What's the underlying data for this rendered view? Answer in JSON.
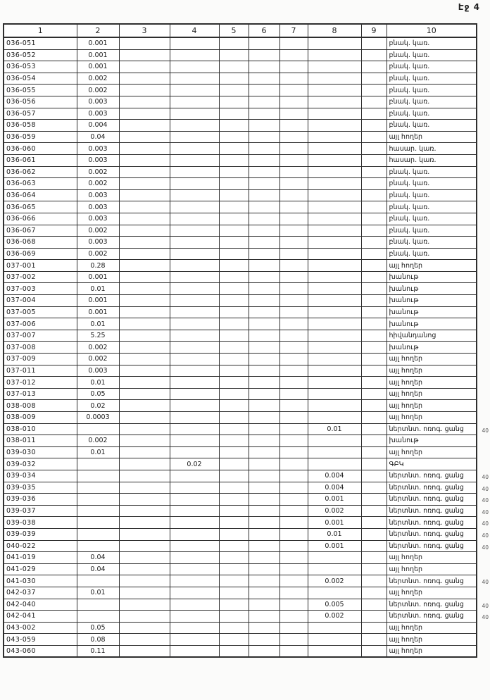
{
  "page": {
    "number_label": "Էջ 4"
  },
  "colors": {
    "paper": "#ffffff",
    "ink": "#1c1c1c",
    "border": "#2e2e2e",
    "margin_note": "#555555"
  },
  "table": {
    "headers": [
      "1",
      "2",
      "3",
      "4",
      "5",
      "6",
      "7",
      "8",
      "9",
      "10"
    ],
    "margin_note_label": "40",
    "rows": [
      {
        "c1": "036-051",
        "c2": "0.001",
        "c3": "",
        "c4": "",
        "c5": "",
        "c6": "",
        "c7": "",
        "c8": "",
        "c9": "",
        "c10": "բնակ. կառ.",
        "note": ""
      },
      {
        "c1": "036-052",
        "c2": "0.001",
        "c3": "",
        "c4": "",
        "c5": "",
        "c6": "",
        "c7": "",
        "c8": "",
        "c9": "",
        "c10": "բնակ. կառ.",
        "note": ""
      },
      {
        "c1": "036-053",
        "c2": "0.001",
        "c3": "",
        "c4": "",
        "c5": "",
        "c6": "",
        "c7": "",
        "c8": "",
        "c9": "",
        "c10": "բնակ. կառ.",
        "note": ""
      },
      {
        "c1": "036-054",
        "c2": "0.002",
        "c3": "",
        "c4": "",
        "c5": "",
        "c6": "",
        "c7": "",
        "c8": "",
        "c9": "",
        "c10": "բնակ. կառ.",
        "note": ""
      },
      {
        "c1": "036-055",
        "c2": "0.002",
        "c3": "",
        "c4": "",
        "c5": "",
        "c6": "",
        "c7": "",
        "c8": "",
        "c9": "",
        "c10": "բնակ. կառ.",
        "note": ""
      },
      {
        "c1": "036-056",
        "c2": "0.003",
        "c3": "",
        "c4": "",
        "c5": "",
        "c6": "",
        "c7": "",
        "c8": "",
        "c9": "",
        "c10": "բնակ. կառ.",
        "note": ""
      },
      {
        "c1": "036-057",
        "c2": "0.003",
        "c3": "",
        "c4": "",
        "c5": "",
        "c6": "",
        "c7": "",
        "c8": "",
        "c9": "",
        "c10": "բնակ. կառ.",
        "note": ""
      },
      {
        "c1": "036-058",
        "c2": "0.004",
        "c3": "",
        "c4": "",
        "c5": "",
        "c6": "",
        "c7": "",
        "c8": "",
        "c9": "",
        "c10": "բնակ. կառ.",
        "note": ""
      },
      {
        "c1": "036-059",
        "c2": "0.04",
        "c3": "",
        "c4": "",
        "c5": "",
        "c6": "",
        "c7": "",
        "c8": "",
        "c9": "",
        "c10": "այլ հողեր",
        "note": ""
      },
      {
        "c1": "036-060",
        "c2": "0.003",
        "c3": "",
        "c4": "",
        "c5": "",
        "c6": "",
        "c7": "",
        "c8": "",
        "c9": "",
        "c10": "հասար. կառ.",
        "note": ""
      },
      {
        "c1": "036-061",
        "c2": "0.003",
        "c3": "",
        "c4": "",
        "c5": "",
        "c6": "",
        "c7": "",
        "c8": "",
        "c9": "",
        "c10": "հասար. կառ.",
        "note": ""
      },
      {
        "c1": "036-062",
        "c2": "0.002",
        "c3": "",
        "c4": "",
        "c5": "",
        "c6": "",
        "c7": "",
        "c8": "",
        "c9": "",
        "c10": "բնակ. կառ.",
        "note": ""
      },
      {
        "c1": "036-063",
        "c2": "0.002",
        "c3": "",
        "c4": "",
        "c5": "",
        "c6": "",
        "c7": "",
        "c8": "",
        "c9": "",
        "c10": "բնակ. կառ.",
        "note": ""
      },
      {
        "c1": "036-064",
        "c2": "0.003",
        "c3": "",
        "c4": "",
        "c5": "",
        "c6": "",
        "c7": "",
        "c8": "",
        "c9": "",
        "c10": "բնակ. կառ.",
        "note": ""
      },
      {
        "c1": "036-065",
        "c2": "0.003",
        "c3": "",
        "c4": "",
        "c5": "",
        "c6": "",
        "c7": "",
        "c8": "",
        "c9": "",
        "c10": "բնակ. կառ.",
        "note": ""
      },
      {
        "c1": "036-066",
        "c2": "0.003",
        "c3": "",
        "c4": "",
        "c5": "",
        "c6": "",
        "c7": "",
        "c8": "",
        "c9": "",
        "c10": "բնակ. կառ.",
        "note": ""
      },
      {
        "c1": "036-067",
        "c2": "0.002",
        "c3": "",
        "c4": "",
        "c5": "",
        "c6": "",
        "c7": "",
        "c8": "",
        "c9": "",
        "c10": "բնակ. կառ.",
        "note": ""
      },
      {
        "c1": "036-068",
        "c2": "0.003",
        "c3": "",
        "c4": "",
        "c5": "",
        "c6": "",
        "c7": "",
        "c8": "",
        "c9": "",
        "c10": "բնակ. կառ.",
        "note": ""
      },
      {
        "c1": "036-069",
        "c2": "0.002",
        "c3": "",
        "c4": "",
        "c5": "",
        "c6": "",
        "c7": "",
        "c8": "",
        "c9": "",
        "c10": "բնակ. կառ.",
        "note": ""
      },
      {
        "c1": "037-001",
        "c2": "0.28",
        "c3": "",
        "c4": "",
        "c5": "",
        "c6": "",
        "c7": "",
        "c8": "",
        "c9": "",
        "c10": "այլ հողեր",
        "note": ""
      },
      {
        "c1": "037-002",
        "c2": "0.001",
        "c3": "",
        "c4": "",
        "c5": "",
        "c6": "",
        "c7": "",
        "c8": "",
        "c9": "",
        "c10": "խանութ",
        "note": ""
      },
      {
        "c1": "037-003",
        "c2": "0.01",
        "c3": "",
        "c4": "",
        "c5": "",
        "c6": "",
        "c7": "",
        "c8": "",
        "c9": "",
        "c10": "խանութ",
        "note": ""
      },
      {
        "c1": "037-004",
        "c2": "0.001",
        "c3": "",
        "c4": "",
        "c5": "",
        "c6": "",
        "c7": "",
        "c8": "",
        "c9": "",
        "c10": "խանութ",
        "note": ""
      },
      {
        "c1": "037-005",
        "c2": "0.001",
        "c3": "",
        "c4": "",
        "c5": "",
        "c6": "",
        "c7": "",
        "c8": "",
        "c9": "",
        "c10": "խանութ",
        "note": ""
      },
      {
        "c1": "037-006",
        "c2": "0.01",
        "c3": "",
        "c4": "",
        "c5": "",
        "c6": "",
        "c7": "",
        "c8": "",
        "c9": "",
        "c10": "խանութ",
        "note": ""
      },
      {
        "c1": "037-007",
        "c2": "5.25",
        "c3": "",
        "c4": "",
        "c5": "",
        "c6": "",
        "c7": "",
        "c8": "",
        "c9": "",
        "c10": "հիվանդանոց",
        "note": ""
      },
      {
        "c1": "037-008",
        "c2": "0.002",
        "c3": "",
        "c4": "",
        "c5": "",
        "c6": "",
        "c7": "",
        "c8": "",
        "c9": "",
        "c10": "խանութ",
        "note": ""
      },
      {
        "c1": "037-009",
        "c2": "0.002",
        "c3": "",
        "c4": "",
        "c5": "",
        "c6": "",
        "c7": "",
        "c8": "",
        "c9": "",
        "c10": "այլ հողեր",
        "note": ""
      },
      {
        "c1": "037-011",
        "c2": "0.003",
        "c3": "",
        "c4": "",
        "c5": "",
        "c6": "",
        "c7": "",
        "c8": "",
        "c9": "",
        "c10": "այլ հողեր",
        "note": ""
      },
      {
        "c1": "037-012",
        "c2": "0.01",
        "c3": "",
        "c4": "",
        "c5": "",
        "c6": "",
        "c7": "",
        "c8": "",
        "c9": "",
        "c10": "այլ հողեր",
        "note": ""
      },
      {
        "c1": "037-013",
        "c2": "0.05",
        "c3": "",
        "c4": "",
        "c5": "",
        "c6": "",
        "c7": "",
        "c8": "",
        "c9": "",
        "c10": "այլ հողեր",
        "note": ""
      },
      {
        "c1": "038-008",
        "c2": "0.02",
        "c3": "",
        "c4": "",
        "c5": "",
        "c6": "",
        "c7": "",
        "c8": "",
        "c9": "",
        "c10": "այլ հողեր",
        "note": ""
      },
      {
        "c1": "038-009",
        "c2": "0.0003",
        "c3": "",
        "c4": "",
        "c5": "",
        "c6": "",
        "c7": "",
        "c8": "",
        "c9": "",
        "c10": "այլ հողեր",
        "note": ""
      },
      {
        "c1": "038-010",
        "c2": "",
        "c3": "",
        "c4": "",
        "c5": "",
        "c6": "",
        "c7": "",
        "c8": "0.01",
        "c9": "",
        "c10": "ներտնտ. ոռոգ. ցանց",
        "note": "40"
      },
      {
        "c1": "038-011",
        "c2": "0.002",
        "c3": "",
        "c4": "",
        "c5": "",
        "c6": "",
        "c7": "",
        "c8": "",
        "c9": "",
        "c10": "խանութ",
        "note": ""
      },
      {
        "c1": "039-030",
        "c2": "0.01",
        "c3": "",
        "c4": "",
        "c5": "",
        "c6": "",
        "c7": "",
        "c8": "",
        "c9": "",
        "c10": "այլ հողեր",
        "note": ""
      },
      {
        "c1": "039-032",
        "c2": "",
        "c3": "",
        "c4": "0.02",
        "c5": "",
        "c6": "",
        "c7": "",
        "c8": "",
        "c9": "",
        "c10": "ԳԲԿ",
        "note": ""
      },
      {
        "c1": "039-034",
        "c2": "",
        "c3": "",
        "c4": "",
        "c5": "",
        "c6": "",
        "c7": "",
        "c8": "0.004",
        "c9": "",
        "c10": "ներտնտ. ոռոգ. ցանց",
        "note": "40"
      },
      {
        "c1": "039-035",
        "c2": "",
        "c3": "",
        "c4": "",
        "c5": "",
        "c6": "",
        "c7": "",
        "c8": "0.004",
        "c9": "",
        "c10": "ներտնտ. ոռոգ. ցանց",
        "note": "40"
      },
      {
        "c1": "039-036",
        "c2": "",
        "c3": "",
        "c4": "",
        "c5": "",
        "c6": "",
        "c7": "",
        "c8": "0.001",
        "c9": "",
        "c10": "ներտնտ. ոռոգ. ցանց",
        "note": "40"
      },
      {
        "c1": "039-037",
        "c2": "",
        "c3": "",
        "c4": "",
        "c5": "",
        "c6": "",
        "c7": "",
        "c8": "0.002",
        "c9": "",
        "c10": "ներտնտ. ոռոգ. ցանց",
        "note": "40"
      },
      {
        "c1": "039-038",
        "c2": "",
        "c3": "",
        "c4": "",
        "c5": "",
        "c6": "",
        "c7": "",
        "c8": "0.001",
        "c9": "",
        "c10": "ներտնտ. ոռոգ. ցանց",
        "note": "40"
      },
      {
        "c1": "039-039",
        "c2": "",
        "c3": "",
        "c4": "",
        "c5": "",
        "c6": "",
        "c7": "",
        "c8": "0.01",
        "c9": "",
        "c10": "ներտնտ. ոռոգ. ցանց",
        "note": "40"
      },
      {
        "c1": "040-022",
        "c2": "",
        "c3": "",
        "c4": "",
        "c5": "",
        "c6": "",
        "c7": "",
        "c8": "0.001",
        "c9": "",
        "c10": "ներտնտ. ոռոգ. ցանց",
        "note": "40"
      },
      {
        "c1": "041-019",
        "c2": "0.04",
        "c3": "",
        "c4": "",
        "c5": "",
        "c6": "",
        "c7": "",
        "c8": "",
        "c9": "",
        "c10": "այլ հողեր",
        "note": ""
      },
      {
        "c1": "041-029",
        "c2": "0.04",
        "c3": "",
        "c4": "",
        "c5": "",
        "c6": "",
        "c7": "",
        "c8": "",
        "c9": "",
        "c10": "այլ հողեր",
        "note": ""
      },
      {
        "c1": "041-030",
        "c2": "",
        "c3": "",
        "c4": "",
        "c5": "",
        "c6": "",
        "c7": "",
        "c8": "0.002",
        "c9": "",
        "c10": "ներտնտ. ոռոգ. ցանց",
        "note": "40"
      },
      {
        "c1": "042-037",
        "c2": "0.01",
        "c3": "",
        "c4": "",
        "c5": "",
        "c6": "",
        "c7": "",
        "c8": "",
        "c9": "",
        "c10": "այլ հողեր",
        "note": ""
      },
      {
        "c1": "042-040",
        "c2": "",
        "c3": "",
        "c4": "",
        "c5": "",
        "c6": "",
        "c7": "",
        "c8": "0.005",
        "c9": "",
        "c10": "ներտնտ. ոռոգ. ցանց",
        "note": "40"
      },
      {
        "c1": "042-041",
        "c2": "",
        "c3": "",
        "c4": "",
        "c5": "",
        "c6": "",
        "c7": "",
        "c8": "0.002",
        "c9": "",
        "c10": "ներտնտ. ոռոգ. ցանց",
        "note": "40"
      },
      {
        "c1": "043-002",
        "c2": "0.05",
        "c3": "",
        "c4": "",
        "c5": "",
        "c6": "",
        "c7": "",
        "c8": "",
        "c9": "",
        "c10": "այլ հողեր",
        "note": ""
      },
      {
        "c1": "043-059",
        "c2": "0.08",
        "c3": "",
        "c4": "",
        "c5": "",
        "c6": "",
        "c7": "",
        "c8": "",
        "c9": "",
        "c10": "այլ հողեր",
        "note": ""
      },
      {
        "c1": "043-060",
        "c2": "0.11",
        "c3": "",
        "c4": "",
        "c5": "",
        "c6": "",
        "c7": "",
        "c8": "",
        "c9": "",
        "c10": "այլ հողեր",
        "note": ""
      }
    ]
  }
}
